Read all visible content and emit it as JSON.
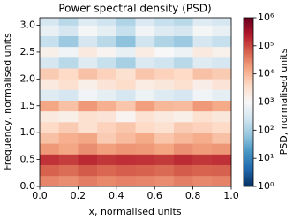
{
  "chart_data": {
    "type": "heatmap",
    "title": "Power spectral density (PSD)",
    "xlabel": "x, normalised units",
    "ylabel": "Frequency, normalised units",
    "colorbar_label": "PSD, normalised units",
    "xbins": [
      0,
      0.1,
      0.2,
      0.3,
      0.4,
      0.5,
      0.6,
      0.7,
      0.8,
      0.9,
      1.0
    ],
    "ybins": [
      0,
      0.2,
      0.4,
      0.6,
      0.8,
      1.0,
      1.2,
      1.4,
      1.6,
      1.8,
      2.0,
      2.2,
      2.4,
      2.6,
      2.8,
      3.0,
      3.14
    ],
    "values": [
      [
        30000,
        25000,
        35000,
        28000,
        32000,
        30000,
        26000,
        34000,
        29000,
        31000
      ],
      [
        60000,
        50000,
        70000,
        55000,
        65000,
        60000,
        52000,
        68000,
        58000,
        62000
      ],
      [
        150000,
        120000,
        180000,
        140000,
        160000,
        150000,
        130000,
        170000,
        140000,
        155000
      ],
      [
        20000,
        15000,
        25000,
        18000,
        22000,
        20000,
        16000,
        24000,
        19000,
        21000
      ],
      [
        8000,
        12000,
        15000,
        6000,
        9000,
        14000,
        7000,
        10000,
        13000,
        8000
      ],
      [
        4000,
        6000,
        3000,
        5000,
        7000,
        4000,
        3000,
        6000,
        5000,
        4000
      ],
      [
        2000,
        1500,
        3000,
        2500,
        1200,
        2800,
        2000,
        1500,
        3000,
        2200
      ],
      [
        15000,
        8000,
        20000,
        12000,
        7000,
        18000,
        10000,
        9000,
        20000,
        14000
      ],
      [
        400,
        300,
        800,
        500,
        300,
        700,
        400,
        300,
        800,
        500
      ],
      [
        2000,
        3000,
        1500,
        2500,
        3500,
        1800,
        2200,
        3000,
        1600,
        2500
      ],
      [
        6000,
        4000,
        8000,
        5000,
        3000,
        7000,
        5000,
        4000,
        8000,
        6000
      ],
      [
        300,
        150,
        400,
        200,
        100,
        350,
        250,
        150,
        400,
        300
      ],
      [
        1500,
        800,
        2000,
        1200,
        600,
        1800,
        1000,
        700,
        2000,
        1400
      ],
      [
        200,
        80,
        300,
        150,
        60,
        250,
        120,
        80,
        300,
        200
      ],
      [
        600,
        300,
        900,
        500,
        200,
        800,
        400,
        300,
        900,
        600
      ],
      [
        300,
        150,
        400,
        250,
        120,
        350,
        200,
        150,
        400,
        300
      ]
    ],
    "xlim": [
      0,
      1
    ],
    "ylim": [
      0,
      3.14
    ],
    "xticks": [
      {
        "value": 0,
        "label": "0.0"
      },
      {
        "value": 0.2,
        "label": "0.2"
      },
      {
        "value": 0.4,
        "label": "0.4"
      },
      {
        "value": 0.6,
        "label": "0.6"
      },
      {
        "value": 0.8,
        "label": "0.8"
      },
      {
        "value": 1,
        "label": "1.0"
      }
    ],
    "yticks": [
      {
        "value": 0,
        "label": "0.0"
      },
      0.5,
      {
        "value": 1,
        "label": "1.0"
      },
      1.5,
      {
        "value": 2,
        "label": "2.0"
      },
      2.5,
      {
        "value": 3,
        "label": "3.0"
      }
    ],
    "colormap": "RdBu_r",
    "color_scale": "log",
    "clim": [
      1,
      1000000
    ],
    "cticks": [
      {
        "value": 1,
        "label": "10⁰"
      },
      {
        "value": 10,
        "label": "10¹"
      },
      {
        "value": 100,
        "label": "10²"
      },
      {
        "value": 1000,
        "label": "10³"
      },
      {
        "value": 10000,
        "label": "10⁴"
      },
      {
        "value": 100000,
        "label": "10⁵"
      },
      {
        "value": 1000000,
        "label": "10⁶"
      }
    ]
  }
}
